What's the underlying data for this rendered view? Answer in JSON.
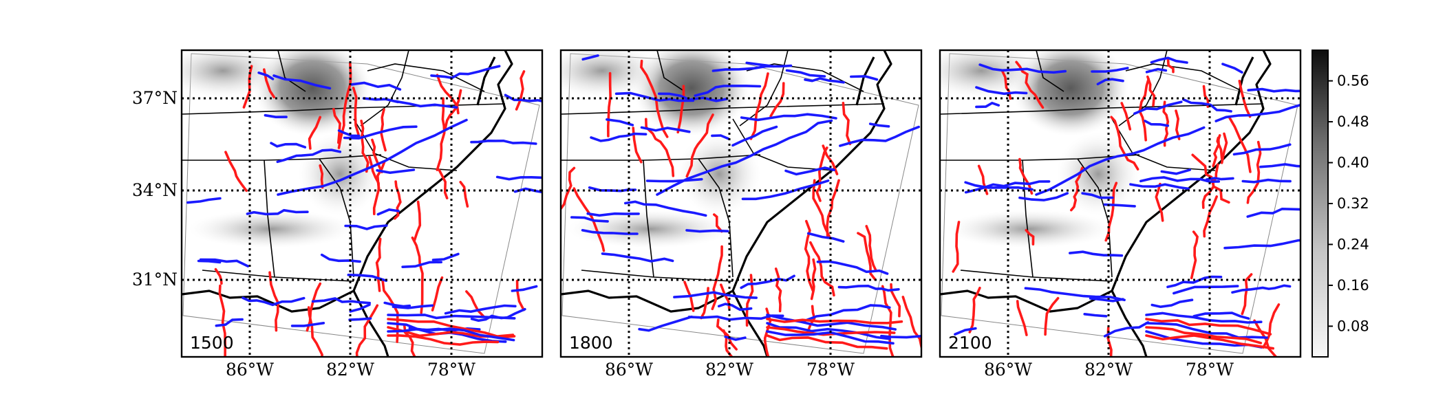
{
  "map": {
    "panels": [
      {
        "id": "p1",
        "time_label": "1500"
      },
      {
        "id": "p2",
        "time_label": "1800"
      },
      {
        "id": "p3",
        "time_label": "2100"
      }
    ],
    "lat_labels": [
      "37°N",
      "34°N",
      "31°N"
    ],
    "lon_labels": [
      "86°W",
      "82°W",
      "78°W"
    ],
    "colorbar": {
      "ticks": [
        "0.56",
        "0.48",
        "0.40",
        "0.32",
        "0.24",
        "0.16",
        "0.08"
      ],
      "colormap": "grays",
      "range": [
        0.02,
        0.62
      ]
    },
    "line_colors": {
      "warm": "#ff1a1a",
      "cold": "#1a1aff"
    },
    "gridlines": "dotted"
  }
}
